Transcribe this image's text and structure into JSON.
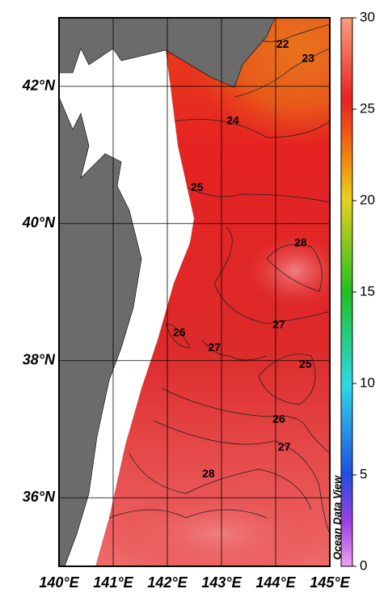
{
  "chart_data": {
    "type": "map",
    "xlim": [
      140,
      145
    ],
    "ylim": [
      35,
      43
    ],
    "xticks": [
      {
        "value": 140,
        "label": "140°E"
      },
      {
        "value": 141,
        "label": "141°E"
      },
      {
        "value": 142,
        "label": "142°E"
      },
      {
        "value": 143,
        "label": "143°E"
      },
      {
        "value": 144,
        "label": "144°E"
      },
      {
        "value": 145,
        "label": "145°E"
      }
    ],
    "yticks": [
      {
        "value": 36,
        "label": "36°N"
      },
      {
        "value": 38,
        "label": "38°N"
      },
      {
        "value": 40,
        "label": "40°N"
      },
      {
        "value": 42,
        "label": "42°N"
      }
    ],
    "grid": true,
    "colorbar": {
      "lim": [
        0,
        30
      ],
      "ticks": [
        0,
        5,
        10,
        15,
        20,
        25,
        30
      ]
    },
    "contour_labels": [
      {
        "value": 22,
        "lon": 144.13,
        "lat": 42.61
      },
      {
        "value": 23,
        "lon": 144.6,
        "lat": 42.4
      },
      {
        "value": 24,
        "lon": 143.21,
        "lat": 41.49
      },
      {
        "value": 25,
        "lon": 142.55,
        "lat": 40.52
      },
      {
        "value": 28,
        "lon": 144.46,
        "lat": 39.71
      },
      {
        "value": 27,
        "lon": 144.06,
        "lat": 38.52
      },
      {
        "value": 26,
        "lon": 142.22,
        "lat": 38.4
      },
      {
        "value": 27,
        "lon": 142.87,
        "lat": 38.18
      },
      {
        "value": 25,
        "lon": 144.55,
        "lat": 37.94
      },
      {
        "value": 26,
        "lon": 144.06,
        "lat": 37.14
      },
      {
        "value": 27,
        "lon": 144.16,
        "lat": 36.73
      },
      {
        "value": 28,
        "lon": 142.76,
        "lat": 36.34
      }
    ],
    "watermark": "Ocean Data View"
  }
}
